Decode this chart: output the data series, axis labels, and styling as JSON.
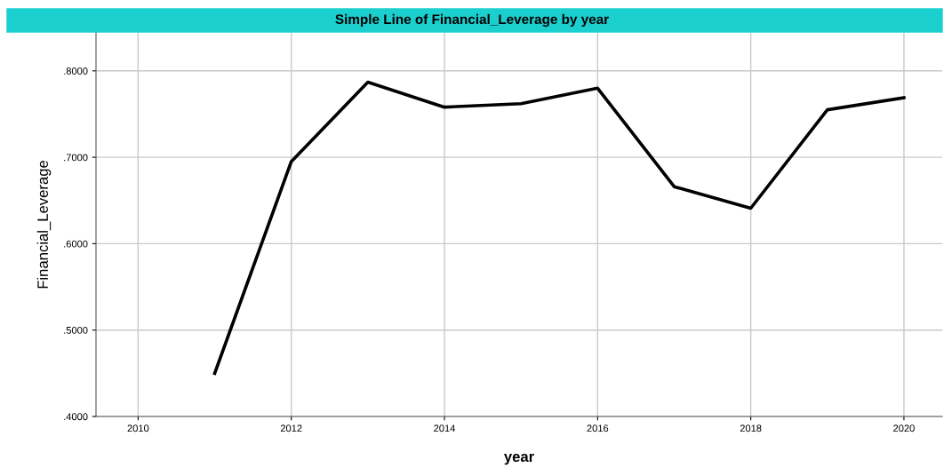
{
  "chart_data": {
    "type": "line",
    "title": "Simple Line of Financial_Leverage by year",
    "xlabel": "year",
    "ylabel": "Financial_Leverage",
    "x": [
      2011,
      2012,
      2013,
      2014,
      2015,
      2016,
      2017,
      2018,
      2019,
      2020
    ],
    "series": [
      {
        "color": "#000000",
        "values": [
          0.45,
          0.695,
          0.787,
          0.758,
          0.762,
          0.78,
          0.666,
          0.641,
          0.755,
          0.769
        ]
      }
    ],
    "xlim": [
      2009.45,
      2020.5
    ],
    "ylim": [
      0.4,
      0.844
    ],
    "xticks": [
      2010,
      2012,
      2014,
      2016,
      2018,
      2020
    ],
    "yticks": [
      {
        "value": 0.4,
        "label": ".4000"
      },
      {
        "value": 0.5,
        "label": ".5000"
      },
      {
        "value": 0.6,
        "label": ".6000"
      },
      {
        "value": 0.7,
        "label": ".7000"
      },
      {
        "value": 0.8,
        "label": ".8000"
      }
    ],
    "grid": true,
    "legend": false,
    "marker": "none",
    "line_style": "solid"
  }
}
